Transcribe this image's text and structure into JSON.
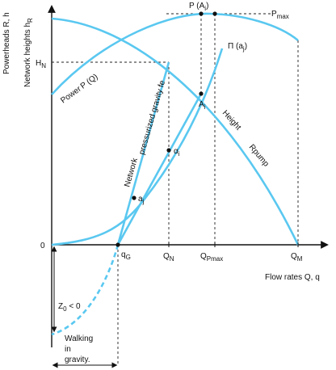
{
  "axes": {
    "y_label_main": "Powerheads R, h",
    "y_label_network": "Network heights h",
    "y_label_network_sub": "R",
    "x_label": "Flow rates Q, q",
    "origin_label": "0",
    "h_n": "H",
    "h_n_sub": "N"
  },
  "points": {
    "p_ai": "P (A",
    "p_ai_sub": "i",
    "p_ai_close": ")",
    "p_max": "P",
    "p_max_sub": "max",
    "pi_ai": "Π (a",
    "pi_ai_sub": "j",
    "pi_ai_close": ")",
    "a_i": "A",
    "a_i_sub": "i",
    "alpha_i": "α",
    "alpha_i_sub": "i",
    "a_j": "a",
    "a_j_sub": "j"
  },
  "curves": {
    "power": "Power",
    "power_q": "P (Q)",
    "height": "Height",
    "pump": "Rpump",
    "network": "Network",
    "pressurized": "pressurized gravity fe"
  },
  "ticks": {
    "q_g": "q",
    "q_g_sub": "G",
    "q_n": "Q",
    "q_n_sub": "N",
    "q_pmax": "Q",
    "q_pmax_sub": "Pmax",
    "q_m": "Q",
    "q_m_sub": "M"
  },
  "gravity": {
    "z0": "Z",
    "z0_sub": "0",
    "z0_rest": " < 0",
    "walking": "Walking",
    "in": "in",
    "gravity": "gravity."
  }
}
